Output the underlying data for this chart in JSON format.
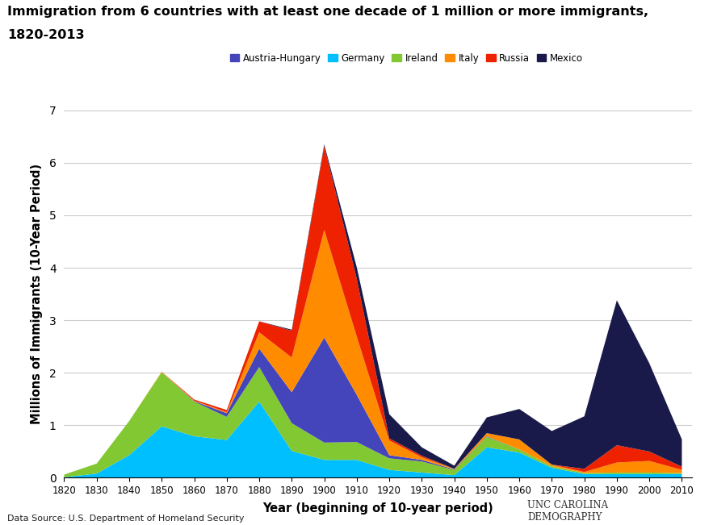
{
  "title_line1": "Immigration from 6 countries with at least one decade of 1 million or more immigrants,",
  "title_line2": "1820-2013",
  "xlabel": "Year (beginning of 10-year period)",
  "ylabel": "Millions of Immigrants (10-Year Period)",
  "source": "Data Source: U.S. Department of Homeland Security",
  "years": [
    1820,
    1830,
    1840,
    1850,
    1860,
    1870,
    1880,
    1890,
    1900,
    1910,
    1920,
    1930,
    1940,
    1950,
    1960,
    1970,
    1980,
    1990,
    2000,
    2010
  ],
  "germany": [
    0.01,
    0.08,
    0.43,
    0.98,
    0.79,
    0.72,
    1.45,
    0.51,
    0.34,
    0.34,
    0.15,
    0.1,
    0.05,
    0.58,
    0.48,
    0.19,
    0.07,
    0.07,
    0.07,
    0.07
  ],
  "ireland": [
    0.05,
    0.19,
    0.65,
    1.03,
    0.66,
    0.44,
    0.66,
    0.53,
    0.33,
    0.34,
    0.22,
    0.21,
    0.1,
    0.2,
    0.06,
    0.03,
    0.02,
    0.03,
    0.03,
    0.02
  ],
  "austria_hungary": [
    0.0,
    0.0,
    0.0,
    0.0,
    0.01,
    0.07,
    0.35,
    0.59,
    2.0,
    0.9,
    0.06,
    0.03,
    0.01,
    0.01,
    0.0,
    0.0,
    0.0,
    0.0,
    0.0,
    0.0
  ],
  "italy": [
    0.0,
    0.0,
    0.0,
    0.01,
    0.01,
    0.02,
    0.31,
    0.66,
    2.05,
    1.11,
    0.28,
    0.05,
    0.01,
    0.06,
    0.19,
    0.03,
    0.02,
    0.19,
    0.22,
    0.06
  ],
  "russia": [
    0.0,
    0.0,
    0.0,
    0.0,
    0.02,
    0.04,
    0.21,
    0.51,
    1.6,
    1.1,
    0.04,
    0.03,
    0.0,
    0.0,
    0.0,
    0.0,
    0.06,
    0.33,
    0.18,
    0.06
  ],
  "mexico": [
    0.0,
    0.0,
    0.0,
    0.0,
    0.0,
    0.0,
    0.0,
    0.02,
    0.03,
    0.22,
    0.46,
    0.16,
    0.06,
    0.3,
    0.58,
    0.64,
    1.0,
    2.76,
    1.68,
    0.52
  ],
  "colors": {
    "austria_hungary": "#4444bb",
    "germany": "#00bfff",
    "ireland": "#82c832",
    "italy": "#ff8c00",
    "russia": "#ee2200",
    "mexico": "#1a1a4a"
  },
  "legend_labels": [
    "Austria-Hungary",
    "Germany",
    "Ireland",
    "Italy",
    "Russia",
    "Mexico"
  ],
  "ylim": [
    0,
    7
  ],
  "yticks": [
    0,
    1,
    2,
    3,
    4,
    5,
    6,
    7
  ]
}
